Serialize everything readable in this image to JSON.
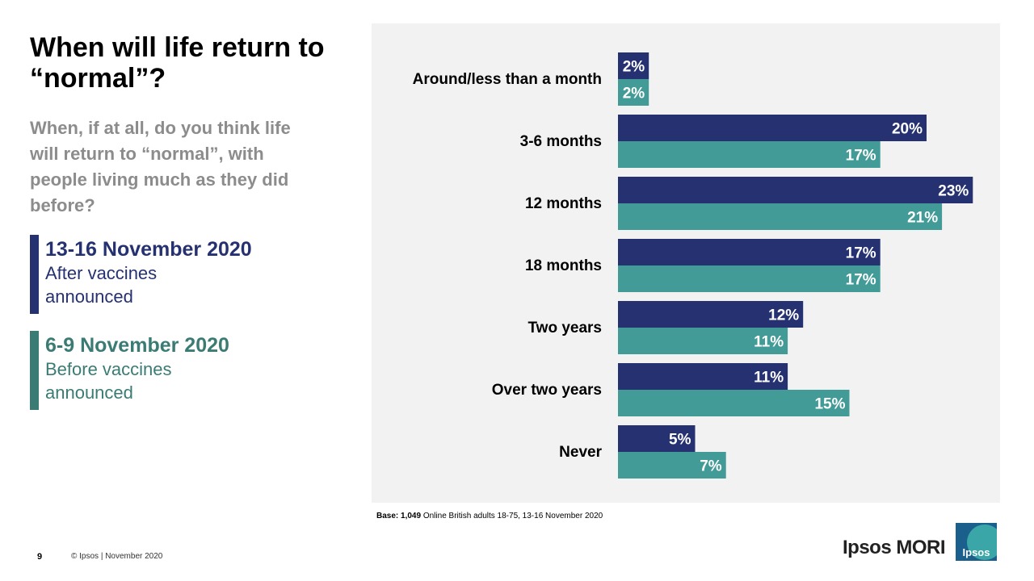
{
  "title": "When will life return to “normal”?",
  "subtitle": "When, if at all, do you think life will return to “normal”, with people living much as they did before?",
  "legend": [
    {
      "date": "13-16 November 2020",
      "line1": "After vaccines",
      "line2": "announced",
      "color": "#253171"
    },
    {
      "date": "6-9 November 2020",
      "line1": "Before vaccines",
      "line2": "announced",
      "color": "#3a7c74"
    }
  ],
  "chart_data": {
    "type": "bar",
    "orientation": "horizontal",
    "categories": [
      "Around/less than a month",
      "3-6 months",
      "12 months",
      "18 months",
      "Two years",
      "Over two years",
      "Never"
    ],
    "series": [
      {
        "name": "13-16 November 2020",
        "color": "#253171",
        "values": [
          2,
          20,
          23,
          17,
          12,
          11,
          5
        ],
        "labels": [
          "2%",
          "20%",
          "23%",
          "17%",
          "12%",
          "11%",
          "5%"
        ]
      },
      {
        "name": "6-9 November 2020",
        "color": "#429b97",
        "values": [
          2,
          17,
          21,
          17,
          11,
          15,
          7
        ],
        "labels": [
          "2%",
          "17%",
          "21%",
          "17%",
          "11%",
          "15%",
          "7%"
        ]
      }
    ],
    "xlim": [
      0,
      23
    ],
    "unit": "%"
  },
  "base_note": {
    "prefix": "Base:",
    "count": "1,049",
    "text": "Online British adults 18-75, 13-16 November 2020"
  },
  "footer": {
    "page_number": "9",
    "copyright": "© Ipsos | November 2020"
  },
  "brand": {
    "name": "Ipsos MORI",
    "logo_text": "Ipsos"
  }
}
